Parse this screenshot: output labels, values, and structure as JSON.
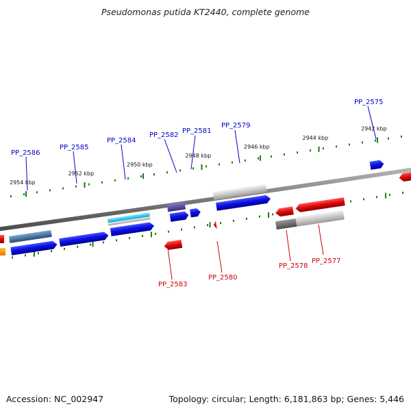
{
  "title": "Pseudomonas putida KT2440, complete genome",
  "footer": {
    "accession": "Accession: NC_002947",
    "summary": "Topology: circular; Length: 6,181,863 bp; Genes: 5,446"
  },
  "colors": {
    "forward_label": "#0000c8",
    "reverse_label": "#cc0000",
    "forward_gene": "#0a12e6",
    "reverse_gene": "#e60a0a",
    "backbone": "#808080",
    "ticks": "#1a7a1a"
  },
  "scale_ticks": [
    {
      "kbp": 2954,
      "label": "2954 kbp"
    },
    {
      "kbp": 2952,
      "label": "2952 kbp"
    },
    {
      "kbp": 2950,
      "label": "2950 kbp"
    },
    {
      "kbp": 2948,
      "label": "2948 kbp"
    },
    {
      "kbp": 2946,
      "label": "2946 kbp"
    },
    {
      "kbp": 2944,
      "label": "2944 kbp"
    },
    {
      "kbp": 2942,
      "label": "2942 kbp"
    }
  ],
  "gene_labels": {
    "forward": [
      "PP_2586",
      "PP_2585",
      "PP_2584",
      "PP_2582",
      "PP_2581",
      "PP_2579",
      "PP_2575"
    ],
    "reverse": [
      "PP_2583",
      "PP_2580",
      "PP_2578",
      "PP_2577"
    ]
  }
}
